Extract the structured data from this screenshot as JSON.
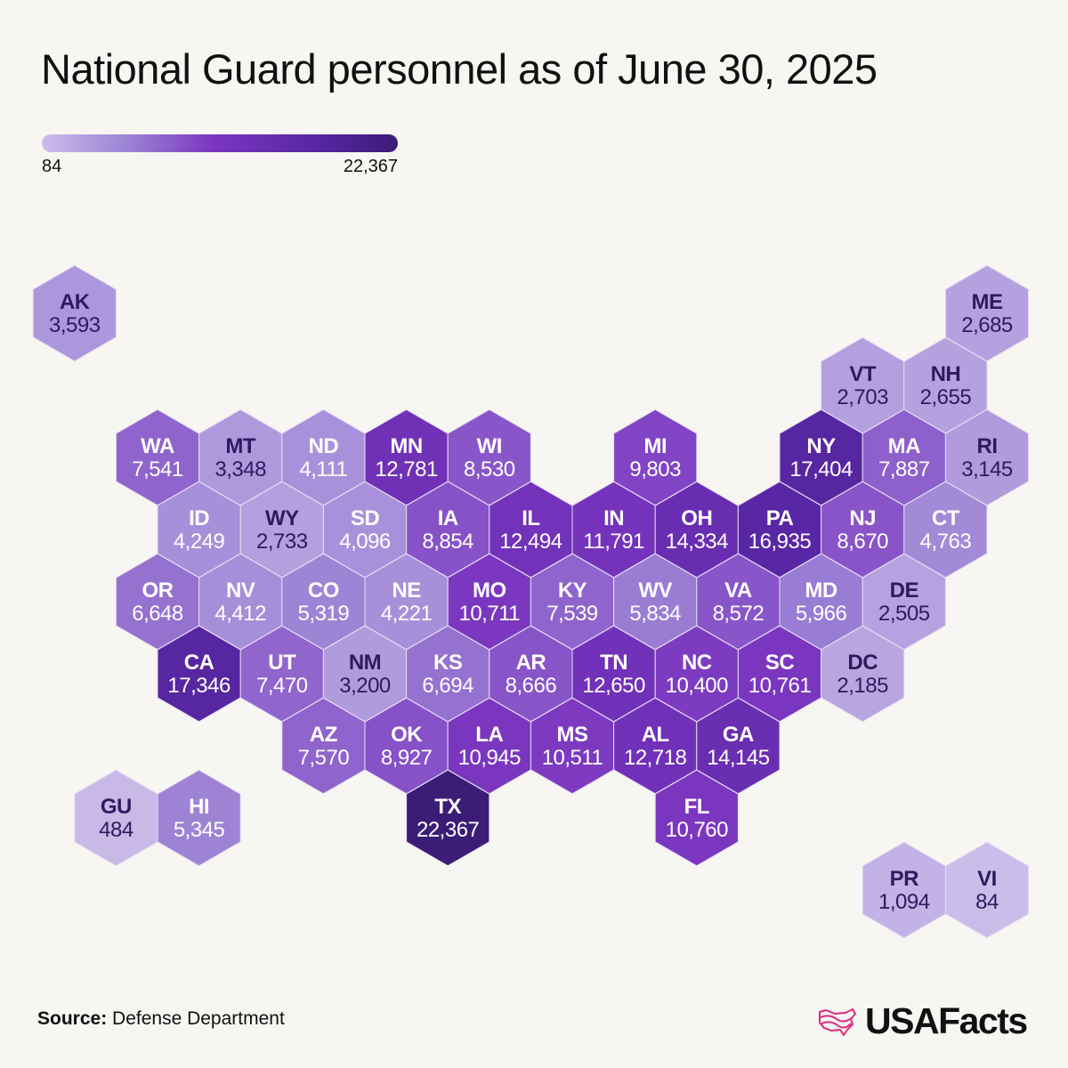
{
  "title": "National Guard personnel as of June 30, 2025",
  "legend": {
    "min_label": "84",
    "max_label": "22,367",
    "min": 84,
    "max": 22367,
    "colors": [
      "#cbbde9",
      "#9b80d4",
      "#7b36c0",
      "#5a27a6",
      "#3b1c76"
    ]
  },
  "source": {
    "label": "Source:",
    "text": "Defense Department"
  },
  "brand": {
    "name": "USAFacts",
    "logo_color": "#e0287d"
  },
  "chart_data": {
    "type": "hex-tile-map",
    "title": "National Guard personnel as of June 30, 2025",
    "states": [
      {
        "abbr": "AK",
        "label": "3,593",
        "value": 3593,
        "row": 0,
        "col": -1
      },
      {
        "abbr": "ME",
        "label": "2,685",
        "value": 2685,
        "row": 0,
        "col": 10
      },
      {
        "abbr": "VT",
        "label": "2,703",
        "value": 2703,
        "row": 1,
        "col": 8
      },
      {
        "abbr": "NH",
        "label": "2,655",
        "value": 2655,
        "row": 1,
        "col": 9
      },
      {
        "abbr": "WA",
        "label": "7,541",
        "value": 7541,
        "row": 2,
        "col": 0
      },
      {
        "abbr": "MT",
        "label": "3,348",
        "value": 3348,
        "row": 2,
        "col": 1
      },
      {
        "abbr": "ND",
        "label": "4,111",
        "value": 4111,
        "row": 2,
        "col": 2
      },
      {
        "abbr": "MN",
        "label": "12,781",
        "value": 12781,
        "row": 2,
        "col": 3
      },
      {
        "abbr": "WI",
        "label": "8,530",
        "value": 8530,
        "row": 2,
        "col": 4
      },
      {
        "abbr": "MI",
        "label": "9,803",
        "value": 9803,
        "row": 2,
        "col": 6
      },
      {
        "abbr": "NY",
        "label": "17,404",
        "value": 17404,
        "row": 2,
        "col": 8
      },
      {
        "abbr": "MA",
        "label": "7,887",
        "value": 7887,
        "row": 2,
        "col": 9
      },
      {
        "abbr": "RI",
        "label": "3,145",
        "value": 3145,
        "row": 2,
        "col": 10
      },
      {
        "abbr": "ID",
        "label": "4,249",
        "value": 4249,
        "row": 3,
        "col": 0
      },
      {
        "abbr": "WY",
        "label": "2,733",
        "value": 2733,
        "row": 3,
        "col": 1
      },
      {
        "abbr": "SD",
        "label": "4,096",
        "value": 4096,
        "row": 3,
        "col": 2
      },
      {
        "abbr": "IA",
        "label": "8,854",
        "value": 8854,
        "row": 3,
        "col": 3
      },
      {
        "abbr": "IL",
        "label": "12,494",
        "value": 12494,
        "row": 3,
        "col": 4
      },
      {
        "abbr": "IN",
        "label": "11,791",
        "value": 11791,
        "row": 3,
        "col": 5
      },
      {
        "abbr": "OH",
        "label": "14,334",
        "value": 14334,
        "row": 3,
        "col": 6
      },
      {
        "abbr": "PA",
        "label": "16,935",
        "value": 16935,
        "row": 3,
        "col": 7
      },
      {
        "abbr": "NJ",
        "label": "8,670",
        "value": 8670,
        "row": 3,
        "col": 8
      },
      {
        "abbr": "CT",
        "label": "4,763",
        "value": 4763,
        "row": 3,
        "col": 9
      },
      {
        "abbr": "OR",
        "label": "6,648",
        "value": 6648,
        "row": 4,
        "col": 0
      },
      {
        "abbr": "NV",
        "label": "4,412",
        "value": 4412,
        "row": 4,
        "col": 1
      },
      {
        "abbr": "CO",
        "label": "5,319",
        "value": 5319,
        "row": 4,
        "col": 2
      },
      {
        "abbr": "NE",
        "label": "4,221",
        "value": 4221,
        "row": 4,
        "col": 3
      },
      {
        "abbr": "MO",
        "label": "10,711",
        "value": 10711,
        "row": 4,
        "col": 4
      },
      {
        "abbr": "KY",
        "label": "7,539",
        "value": 7539,
        "row": 4,
        "col": 5
      },
      {
        "abbr": "WV",
        "label": "5,834",
        "value": 5834,
        "row": 4,
        "col": 6
      },
      {
        "abbr": "VA",
        "label": "8,572",
        "value": 8572,
        "row": 4,
        "col": 7
      },
      {
        "abbr": "MD",
        "label": "5,966",
        "value": 5966,
        "row": 4,
        "col": 8
      },
      {
        "abbr": "DE",
        "label": "2,505",
        "value": 2505,
        "row": 4,
        "col": 9
      },
      {
        "abbr": "CA",
        "label": "17,346",
        "value": 17346,
        "row": 5,
        "col": 0
      },
      {
        "abbr": "UT",
        "label": "7,470",
        "value": 7470,
        "row": 5,
        "col": 1
      },
      {
        "abbr": "NM",
        "label": "3,200",
        "value": 3200,
        "row": 5,
        "col": 2
      },
      {
        "abbr": "KS",
        "label": "6,694",
        "value": 6694,
        "row": 5,
        "col": 3
      },
      {
        "abbr": "AR",
        "label": "8,666",
        "value": 8666,
        "row": 5,
        "col": 4
      },
      {
        "abbr": "TN",
        "label": "12,650",
        "value": 12650,
        "row": 5,
        "col": 5
      },
      {
        "abbr": "NC",
        "label": "10,400",
        "value": 10400,
        "row": 5,
        "col": 6
      },
      {
        "abbr": "SC",
        "label": "10,761",
        "value": 10761,
        "row": 5,
        "col": 7
      },
      {
        "abbr": "DC",
        "label": "2,185",
        "value": 2185,
        "row": 5,
        "col": 8
      },
      {
        "abbr": "AZ",
        "label": "7,570",
        "value": 7570,
        "row": 6,
        "col": 2
      },
      {
        "abbr": "OK",
        "label": "8,927",
        "value": 8927,
        "row": 6,
        "col": 3
      },
      {
        "abbr": "LA",
        "label": "10,945",
        "value": 10945,
        "row": 6,
        "col": 4
      },
      {
        "abbr": "MS",
        "label": "10,511",
        "value": 10511,
        "row": 6,
        "col": 5
      },
      {
        "abbr": "AL",
        "label": "12,718",
        "value": 12718,
        "row": 6,
        "col": 6
      },
      {
        "abbr": "GA",
        "label": "14,145",
        "value": 14145,
        "row": 6,
        "col": 7
      },
      {
        "abbr": "GU",
        "label": "484",
        "value": 484,
        "row": 7,
        "col": -1
      },
      {
        "abbr": "HI",
        "label": "5,345",
        "value": 5345,
        "row": 7,
        "col": 0
      },
      {
        "abbr": "TX",
        "label": "22,367",
        "value": 22367,
        "row": 7,
        "col": 3
      },
      {
        "abbr": "FL",
        "label": "10,760",
        "value": 10760,
        "row": 7,
        "col": 6
      },
      {
        "abbr": "PR",
        "label": "1,094",
        "value": 1094,
        "row": 8,
        "col": 9
      },
      {
        "abbr": "VI",
        "label": "84",
        "value": 84,
        "row": 8,
        "col": 10
      }
    ]
  }
}
